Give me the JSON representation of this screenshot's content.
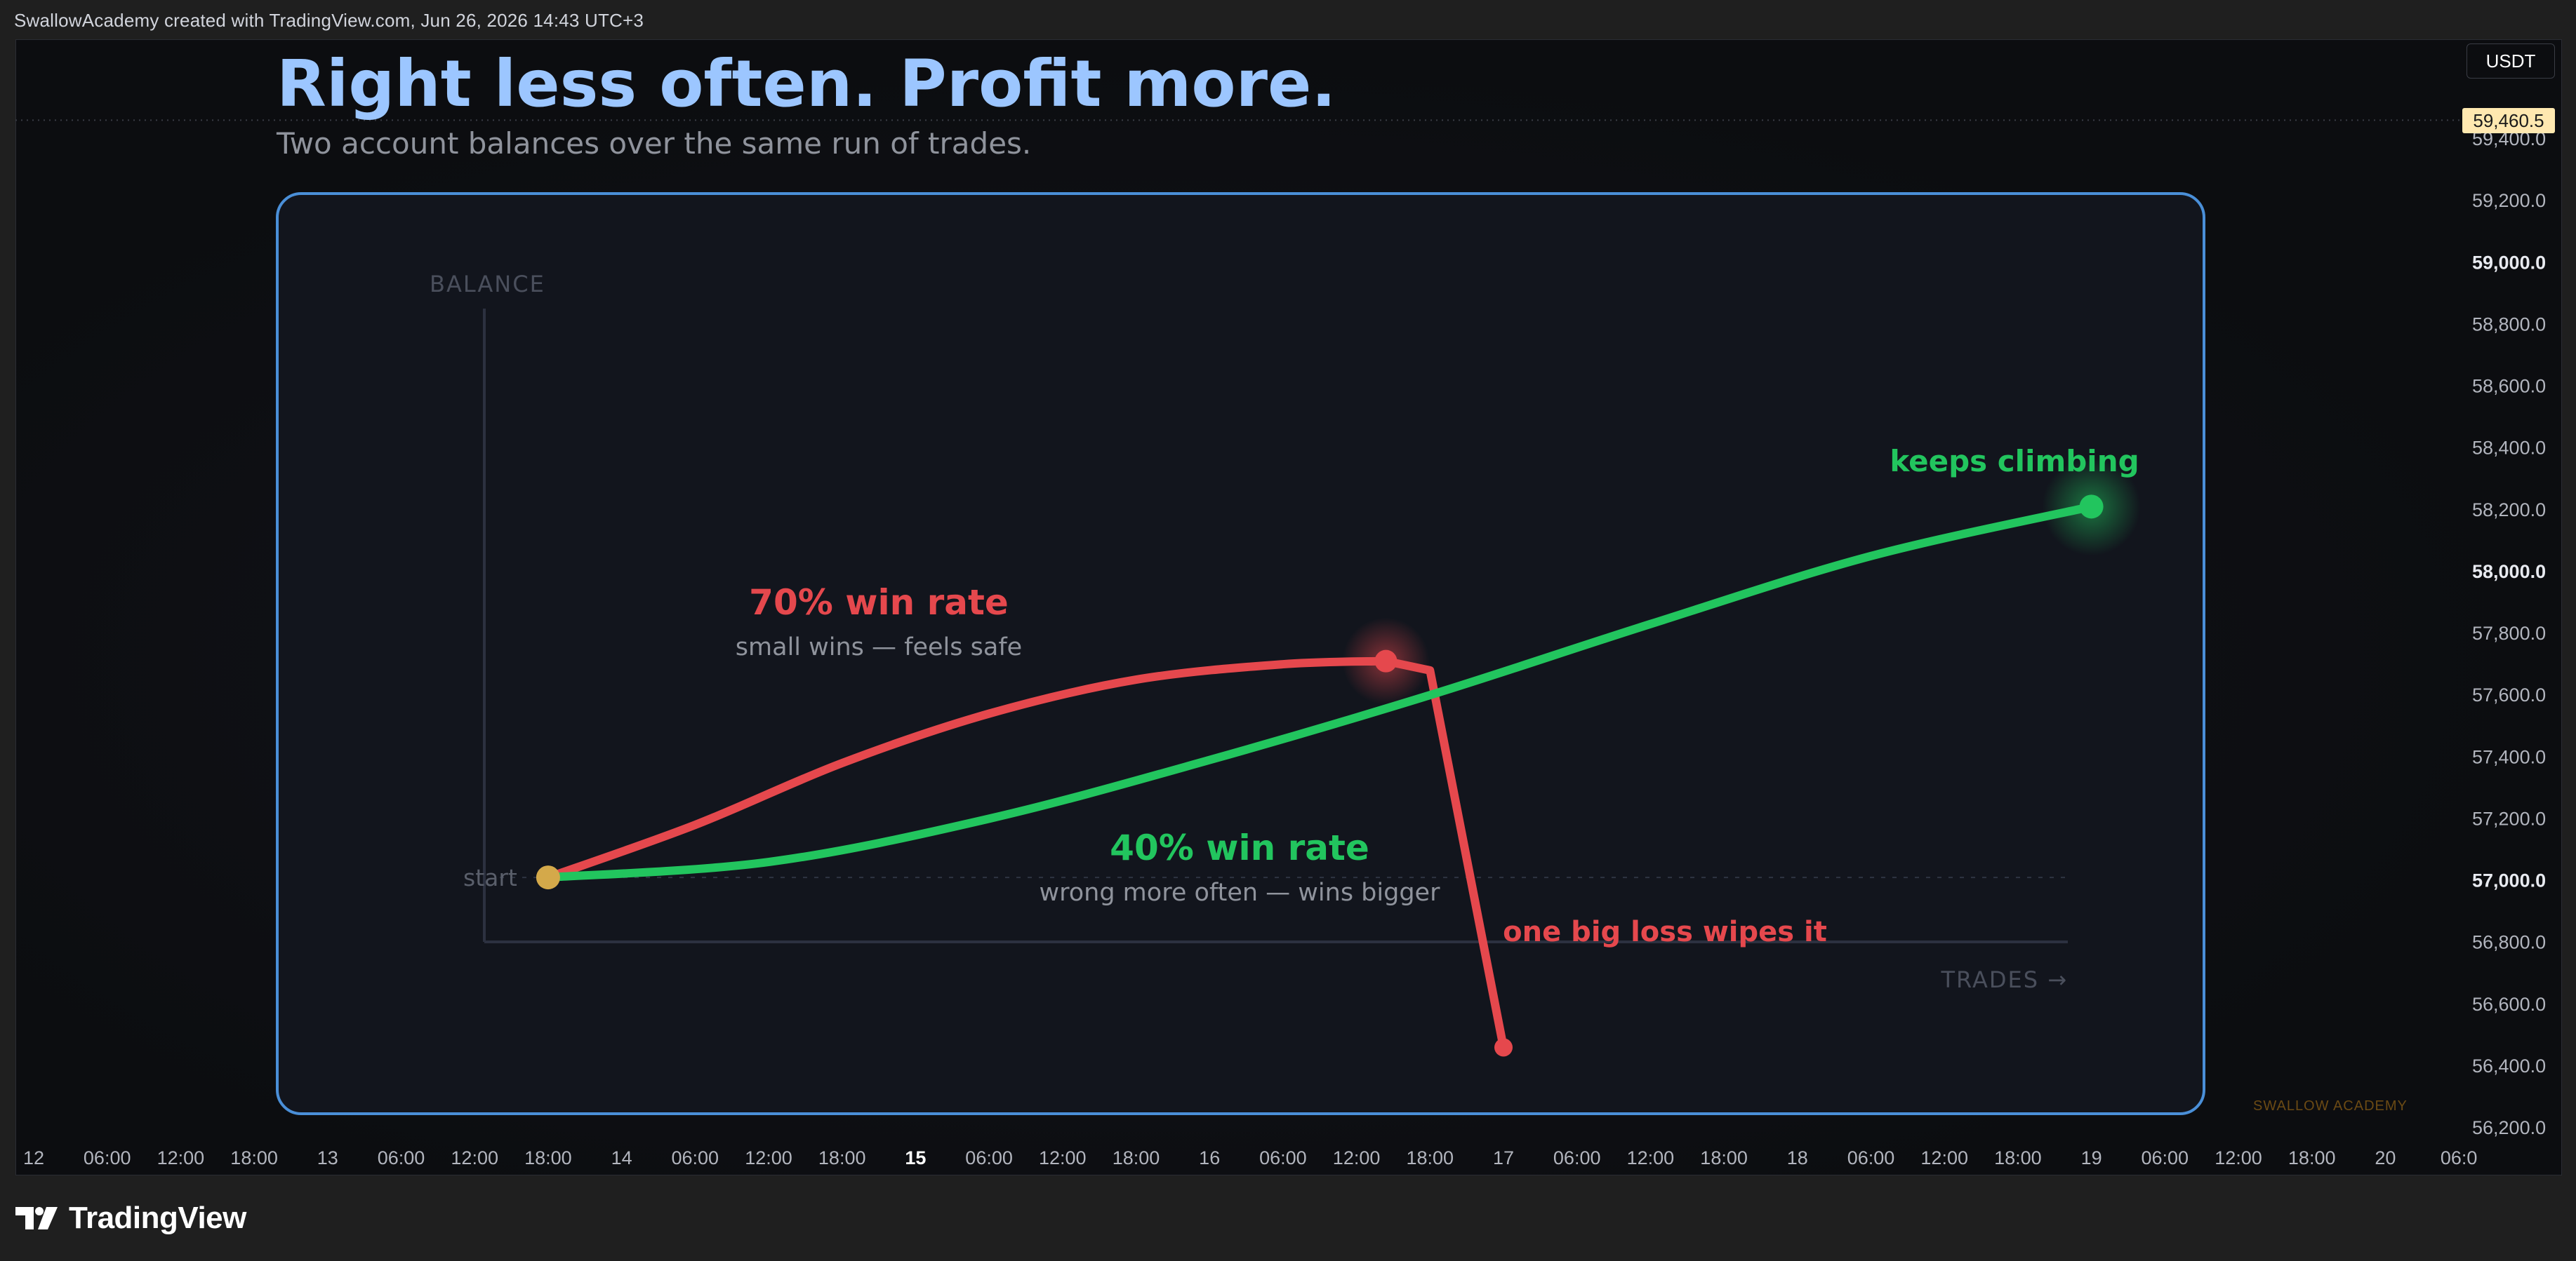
{
  "attribution": "SwallowAcademy created with TradingView.com, Jun 26, 2026 14:43 UTC+3",
  "brand": {
    "name": "TradingView",
    "logo_icon": "tradingview-logo-icon"
  },
  "currency_button": "USDT",
  "last_price": "59,460.5",
  "watermark": "SWALLOW ACADEMY",
  "colors": {
    "headline": "#9cc6ff",
    "red_series": "#e5484d",
    "green_series": "#22c55e",
    "start_dot": "#d4a94a",
    "frame_border": "#4a8fd8",
    "price_tag": "#ffe8b0"
  },
  "price_axis": {
    "labels": [
      {
        "value": 59400,
        "text": "59,400.0",
        "bold": false
      },
      {
        "value": 59200,
        "text": "59,200.0",
        "bold": false
      },
      {
        "value": 59000,
        "text": "59,000.0",
        "bold": true
      },
      {
        "value": 58800,
        "text": "58,800.0",
        "bold": false
      },
      {
        "value": 58600,
        "text": "58,600.0",
        "bold": false
      },
      {
        "value": 58400,
        "text": "58,400.0",
        "bold": false
      },
      {
        "value": 58200,
        "text": "58,200.0",
        "bold": false
      },
      {
        "value": 58000,
        "text": "58,000.0",
        "bold": true
      },
      {
        "value": 57800,
        "text": "57,800.0",
        "bold": false
      },
      {
        "value": 57600,
        "text": "57,600.0",
        "bold": false
      },
      {
        "value": 57400,
        "text": "57,400.0",
        "bold": false
      },
      {
        "value": 57200,
        "text": "57,200.0",
        "bold": false
      },
      {
        "value": 57000,
        "text": "57,000.0",
        "bold": true
      },
      {
        "value": 56800,
        "text": "56,800.0",
        "bold": false
      },
      {
        "value": 56600,
        "text": "56,600.0",
        "bold": false
      },
      {
        "value": 56400,
        "text": "56,400.0",
        "bold": false
      },
      {
        "value": 56200,
        "text": "56,200.0",
        "bold": false
      }
    ]
  },
  "time_axis": {
    "labels": [
      {
        "t": 0,
        "text": "12",
        "bold": false
      },
      {
        "t": 1,
        "text": "06:00",
        "bold": false
      },
      {
        "t": 2,
        "text": "12:00",
        "bold": false
      },
      {
        "t": 3,
        "text": "18:00",
        "bold": false
      },
      {
        "t": 4,
        "text": "13",
        "bold": false
      },
      {
        "t": 5,
        "text": "06:00",
        "bold": false
      },
      {
        "t": 6,
        "text": "12:00",
        "bold": false
      },
      {
        "t": 7,
        "text": "18:00",
        "bold": false
      },
      {
        "t": 8,
        "text": "14",
        "bold": false
      },
      {
        "t": 9,
        "text": "06:00",
        "bold": false
      },
      {
        "t": 10,
        "text": "12:00",
        "bold": false
      },
      {
        "t": 11,
        "text": "18:00",
        "bold": false
      },
      {
        "t": 12,
        "text": "15",
        "bold": true
      },
      {
        "t": 13,
        "text": "06:00",
        "bold": false
      },
      {
        "t": 14,
        "text": "12:00",
        "bold": false
      },
      {
        "t": 15,
        "text": "18:00",
        "bold": false
      },
      {
        "t": 16,
        "text": "16",
        "bold": false
      },
      {
        "t": 17,
        "text": "06:00",
        "bold": false
      },
      {
        "t": 18,
        "text": "12:00",
        "bold": false
      },
      {
        "t": 19,
        "text": "18:00",
        "bold": false
      },
      {
        "t": 20,
        "text": "17",
        "bold": false
      },
      {
        "t": 21,
        "text": "06:00",
        "bold": false
      },
      {
        "t": 22,
        "text": "12:00",
        "bold": false
      },
      {
        "t": 23,
        "text": "18:00",
        "bold": false
      },
      {
        "t": 24,
        "text": "18",
        "bold": false
      },
      {
        "t": 25,
        "text": "06:00",
        "bold": false
      },
      {
        "t": 26,
        "text": "12:00",
        "bold": false
      },
      {
        "t": 27,
        "text": "18:00",
        "bold": false
      },
      {
        "t": 28,
        "text": "19",
        "bold": false
      },
      {
        "t": 29,
        "text": "06:00",
        "bold": false
      },
      {
        "t": 30,
        "text": "12:00",
        "bold": false
      },
      {
        "t": 31,
        "text": "18:00",
        "bold": false
      },
      {
        "t": 32,
        "text": "20",
        "bold": false
      },
      {
        "t": 33,
        "text": "06:0",
        "bold": false
      }
    ]
  },
  "chart_data": {
    "type": "line",
    "title": "Right less often. Profit more.",
    "subtitle": "Two account balances over the same run of trades.",
    "xlabel": "TRADES →",
    "ylabel": "BALANCE",
    "xlim": [
      13.75,
      20.0
    ],
    "ylim": [
      56200,
      59460.5
    ],
    "start": {
      "x": 13.75,
      "y": 57010,
      "label": "start"
    },
    "series": [
      {
        "name": "70% win rate",
        "caption": "small wins — feels safe",
        "color": "#e5484d",
        "points": [
          {
            "x": 13.75,
            "y": 57010
          },
          {
            "x": 14.25,
            "y": 57180
          },
          {
            "x": 14.75,
            "y": 57380
          },
          {
            "x": 15.25,
            "y": 57540
          },
          {
            "x": 15.75,
            "y": 57650
          },
          {
            "x": 16.25,
            "y": 57700
          },
          {
            "x": 16.6,
            "y": 57710
          },
          {
            "x": 16.75,
            "y": 57680
          },
          {
            "x": 17.0,
            "y": 56460
          }
        ],
        "annotation": "one big loss wipes it"
      },
      {
        "name": "40% win rate",
        "caption": "wrong more often — wins bigger",
        "color": "#22c55e",
        "points": [
          {
            "x": 13.75,
            "y": 57010
          },
          {
            "x": 14.5,
            "y": 57060
          },
          {
            "x": 15.25,
            "y": 57200
          },
          {
            "x": 16.0,
            "y": 57390
          },
          {
            "x": 16.75,
            "y": 57600
          },
          {
            "x": 17.5,
            "y": 57830
          },
          {
            "x": 18.25,
            "y": 58050
          },
          {
            "x": 19.0,
            "y": 58210
          }
        ],
        "annotation": "keeps climbing"
      }
    ]
  }
}
